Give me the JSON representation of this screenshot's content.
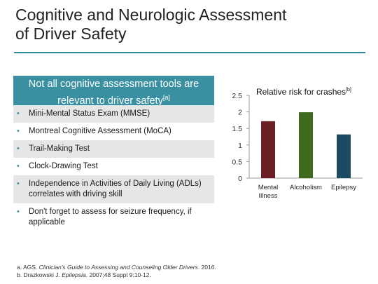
{
  "slide": {
    "title_line1": "Cognitive and Neurologic Assessment",
    "title_line2": "of Driver Safety"
  },
  "box": {
    "header_line1": "Not all cognitive assessment tools are",
    "header_line2": "relevant to driver safety",
    "header_ref": "[a]",
    "bullets": [
      "Mini-Mental Status Exam (MMSE)",
      "Montreal Cognitive Assessment (MoCA)",
      "Trail-Making Test",
      "Clock-Drawing Test",
      "Independence in Activities of Daily Living (ADLs) correlates with driving skill",
      "Don't forget to assess for seizure frequency, if applicable"
    ],
    "bullet_symbol": "•",
    "accent_color": "#3a8fa1"
  },
  "chart_data": {
    "type": "bar",
    "title": "Relative risk for crashes",
    "title_ref": "[b]",
    "categories": [
      "Mental Illness",
      "Alcoholism",
      "Epilepsy"
    ],
    "category_lines": [
      [
        "Mental",
        "Illness"
      ],
      [
        "Alcoholism"
      ],
      [
        "Epilepsy"
      ]
    ],
    "values": [
      1.72,
      1.99,
      1.32
    ],
    "colors": [
      "#6b1f24",
      "#3f6a1e",
      "#1b4a63"
    ],
    "ylim": [
      0,
      2.5
    ],
    "yticks": [
      "0",
      "0.5",
      "1",
      "1.5",
      "2",
      "2.5"
    ],
    "grid": false,
    "xlabel": "",
    "ylabel": ""
  },
  "footnotes": {
    "a_prefix": "a. AGS. ",
    "a_title": "Clinician's Guide to Assessing and Counseling Older Drivers",
    "a_suffix": ". 2016.",
    "b_prefix": "b. Drazkowski J. ",
    "b_journal": "Epilepsia",
    "b_suffix": ". 2007;48 Suppl 9:10-12."
  }
}
